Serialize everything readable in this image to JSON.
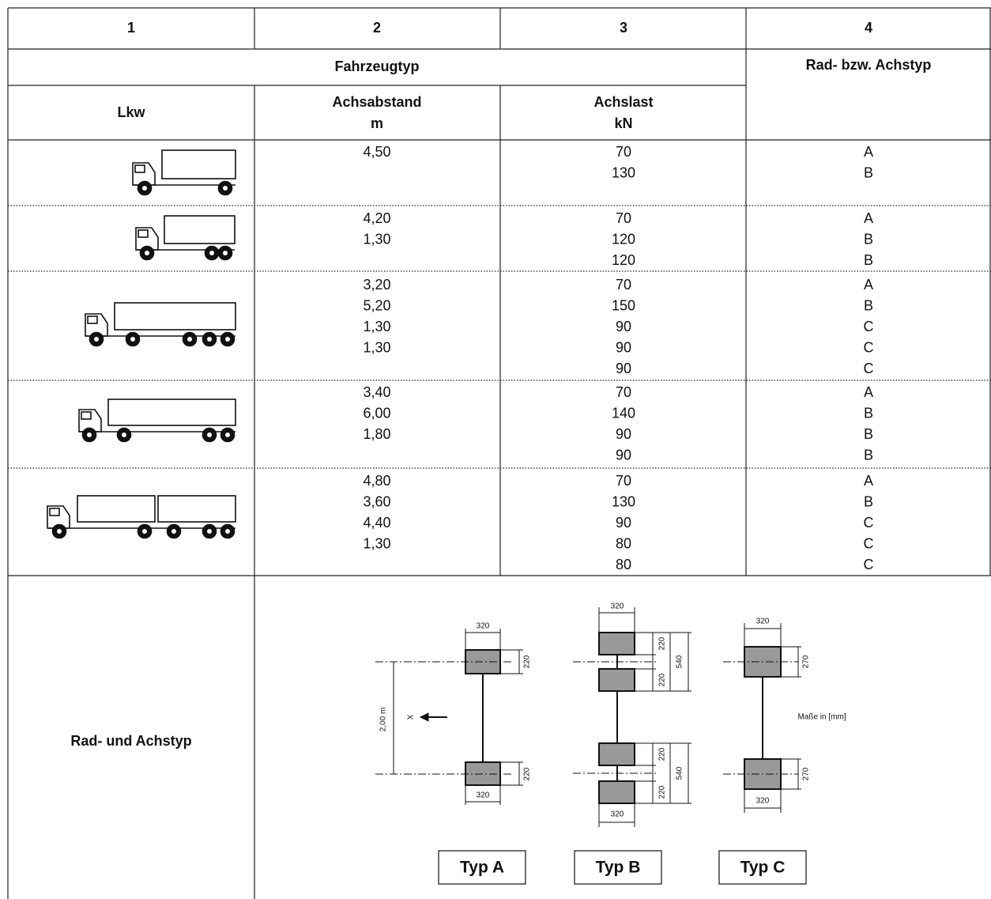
{
  "table": {
    "column_numbers": [
      "1",
      "2",
      "3",
      "4"
    ],
    "group_header": "Fahrzeugtyp",
    "type_header": "Rad- bzw. Achstyp",
    "vehicle_header": "Lkw",
    "spacing_header": [
      "Achsabstand",
      "m"
    ],
    "load_header": [
      "Achslast",
      "kN"
    ],
    "rows": [
      {
        "axle_spacing": [
          "4,50"
        ],
        "axle_load": [
          70,
          130
        ],
        "axle_type": [
          "A",
          "B"
        ]
      },
      {
        "axle_spacing": [
          "4,20",
          "1,30"
        ],
        "axle_load": [
          70,
          120,
          120
        ],
        "axle_type": [
          "A",
          "B",
          "B"
        ]
      },
      {
        "axle_spacing": [
          "3,20",
          "5,20",
          "1,30",
          "1,30"
        ],
        "axle_load": [
          70,
          150,
          90,
          90,
          90
        ],
        "axle_type": [
          "A",
          "B",
          "C",
          "C",
          "C"
        ]
      },
      {
        "axle_spacing": [
          "3,40",
          "6,00",
          "1,80"
        ],
        "axle_load": [
          70,
          140,
          90,
          90
        ],
        "axle_type": [
          "A",
          "B",
          "B",
          "B"
        ]
      },
      {
        "axle_spacing": [
          "4,80",
          "3,60",
          "4,40",
          "1,30"
        ],
        "axle_load": [
          70,
          130,
          90,
          80,
          80
        ],
        "axle_type": [
          "A",
          "B",
          "C",
          "C",
          "C"
        ]
      }
    ],
    "footer_label": "Rad- und Achstyp"
  },
  "diagram": {
    "typ_a": {
      "dims": [
        "320",
        "220",
        "220",
        "320"
      ],
      "spacing": "2,00 m",
      "direction": "X",
      "label": "Typ A"
    },
    "typ_b": {
      "dims": [
        "320",
        "220",
        "220",
        "540",
        "220",
        "220",
        "540",
        "320"
      ],
      "label": "Typ B"
    },
    "typ_c": {
      "dims": [
        "320",
        "270",
        "270",
        "320"
      ],
      "label": "Typ C"
    },
    "unit_note": "Maße in [mm]"
  }
}
